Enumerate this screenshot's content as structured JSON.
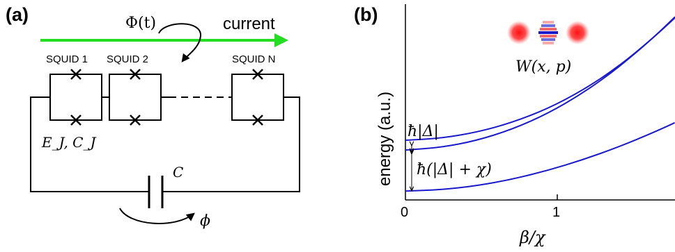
{
  "panel_a": {
    "label": "(a)",
    "flux_label": "Φ(t)",
    "current_label": "current",
    "squid_labels": [
      "SQUID 1",
      "SQUID 2",
      "SQUID N"
    ],
    "junction_params": "E_J, C_J",
    "capacitor_label": "C",
    "phase_label": "ϕ",
    "colors": {
      "current_arrow": "#22dd22",
      "circuit": "#000000"
    }
  },
  "panel_b": {
    "label": "(b)",
    "wigner_label": "W(x, p)",
    "gap1_label": "ħ|Δ|",
    "gap2_label": "ħ(|Δ| + χ)",
    "chart_data": {
      "type": "line",
      "xlabel": "β/χ",
      "ylabel": "energy (a.u.)",
      "x_ticks": [
        "0",
        "1"
      ],
      "xlim": [
        0,
        1.9
      ],
      "ylim": [
        0,
        1
      ],
      "series": [
        {
          "x": [
            0,
            0.25,
            0.5,
            0.75,
            1.0,
            1.25,
            1.5,
            1.75,
            1.9
          ],
          "values": [
            0.305,
            0.315,
            0.345,
            0.395,
            0.465,
            0.56,
            0.68,
            0.83,
            0.93
          ]
        },
        {
          "x": [
            0,
            0.25,
            0.5,
            0.75,
            1.0,
            1.25,
            1.5,
            1.75,
            1.9
          ],
          "values": [
            0.255,
            0.268,
            0.303,
            0.36,
            0.44,
            0.545,
            0.675,
            0.83,
            0.935
          ]
        },
        {
          "x": [
            0,
            0.25,
            0.5,
            0.75,
            1.0,
            1.25,
            1.5,
            1.75,
            1.9
          ],
          "values": [
            0.045,
            0.052,
            0.072,
            0.105,
            0.15,
            0.205,
            0.27,
            0.345,
            0.395
          ]
        }
      ],
      "grid": false
    },
    "colors": {
      "curve": "#1a1acc",
      "blob": "#ee1111"
    }
  }
}
